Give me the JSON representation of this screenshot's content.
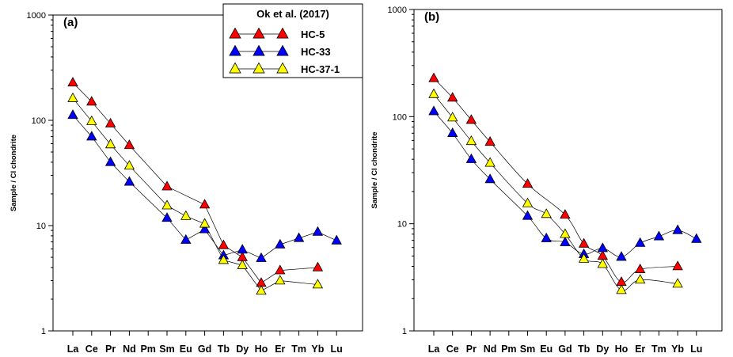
{
  "chart_data": [
    {
      "type": "line",
      "panel_label": "(a)",
      "ylabel": "Sample / CI chondrite",
      "yscale": "log",
      "ylim": [
        1,
        1000
      ],
      "yticks": [
        "1",
        "10",
        "100",
        "1000"
      ],
      "categories": [
        "La",
        "Ce",
        "Pr",
        "Nd",
        "Pm",
        "Sm",
        "Eu",
        "Gd",
        "Tb",
        "Dy",
        "Ho",
        "Er",
        "Tm",
        "Yb",
        "Lu"
      ],
      "curve_smooth": false,
      "legend": {
        "title": "Ok et al. (2017)",
        "position": "top-center",
        "entries": [
          "HC-5",
          "HC-33",
          "HC-37-1"
        ]
      },
      "series": [
        {
          "name": "HC-5",
          "color": "#ff0000",
          "values": [
            228,
            150,
            93,
            58,
            null,
            23.5,
            null,
            15.8,
            6.5,
            5.0,
            2.85,
            3.75,
            null,
            4.0,
            null
          ]
        },
        {
          "name": "HC-33",
          "color": "#0000ff",
          "values": [
            112,
            70,
            40,
            26,
            null,
            11.8,
            7.3,
            9.2,
            5.2,
            5.9,
            4.9,
            6.6,
            7.6,
            8.7,
            7.2
          ]
        },
        {
          "name": "HC-37-1",
          "color": "#ffff00",
          "values": [
            162,
            98,
            59,
            37,
            null,
            15.5,
            12.3,
            10.4,
            4.7,
            4.2,
            2.4,
            3.0,
            null,
            2.75,
            null
          ]
        }
      ]
    },
    {
      "type": "line",
      "panel_label": "(b)",
      "ylabel": "Sample / CI chondrite",
      "yscale": "log",
      "ylim": [
        1,
        1000
      ],
      "yticks": [
        "1",
        "10",
        "100",
        "1000"
      ],
      "categories": [
        "La",
        "Ce",
        "Pr",
        "Nd",
        "Pm",
        "Sm",
        "Eu",
        "Gd",
        "Tb",
        "Dy",
        "Ho",
        "Er",
        "Tm",
        "Yb",
        "Lu"
      ],
      "curve_smooth": true,
      "series": [
        {
          "name": "HC-5",
          "color": "#ff0000",
          "values": [
            228,
            150,
            93,
            58,
            null,
            23.5,
            null,
            12.1,
            6.5,
            5.0,
            2.85,
            3.75,
            null,
            4.0,
            null
          ]
        },
        {
          "name": "HC-33",
          "color": "#0000ff",
          "values": [
            112,
            70,
            40,
            26,
            null,
            11.8,
            7.3,
            6.7,
            5.2,
            5.9,
            4.9,
            6.6,
            7.6,
            8.7,
            7.2
          ]
        },
        {
          "name": "HC-37-1",
          "color": "#ffff00",
          "values": [
            162,
            98,
            59,
            37,
            null,
            15.5,
            12.3,
            8.0,
            4.7,
            4.2,
            2.4,
            3.0,
            null,
            2.75,
            null
          ]
        }
      ]
    }
  ]
}
